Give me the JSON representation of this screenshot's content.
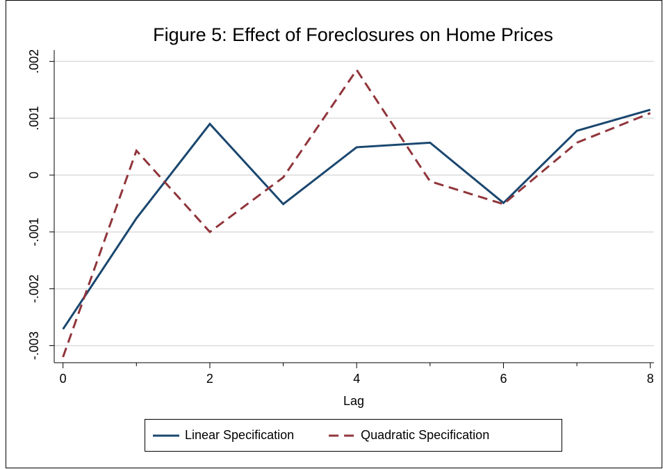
{
  "chart_data": {
    "type": "line",
    "title": "Figure 5: Effect of Foreclosures on Home Prices",
    "x_label": "Lag",
    "x": [
      0,
      1,
      2,
      3,
      4,
      5,
      6,
      7,
      8
    ],
    "series": [
      {
        "name": "Linear Specification",
        "color": "#1a476f",
        "dash": false,
        "values": [
          -0.00271,
          -0.00076,
          0.0009,
          -0.00051,
          0.00049,
          0.00057,
          -0.00049,
          0.00078,
          0.00115
        ]
      },
      {
        "name": "Quadratic Specification",
        "color": "#90353b",
        "dash": true,
        "values": [
          -0.0032,
          0.00043,
          -0.001,
          -4e-05,
          0.00185,
          -0.00011,
          -0.00051,
          0.00057,
          0.00109
        ]
      }
    ],
    "xlim": [
      -0.12,
      8.05
    ],
    "ylim": [
      -0.0033,
      0.0022
    ],
    "xticks": [
      0,
      2,
      4,
      6,
      8
    ],
    "xminorticks": [
      1,
      3,
      5,
      7
    ],
    "yticks": [
      {
        "value": -0.003,
        "label": "-.003"
      },
      {
        "value": -0.002,
        "label": "-.002"
      },
      {
        "value": -0.001,
        "label": "-.001"
      },
      {
        "value": 0,
        "label": "0"
      },
      {
        "value": 0.001,
        "label": ".001"
      },
      {
        "value": 0.002,
        "label": ".002"
      }
    ],
    "grid": true
  }
}
